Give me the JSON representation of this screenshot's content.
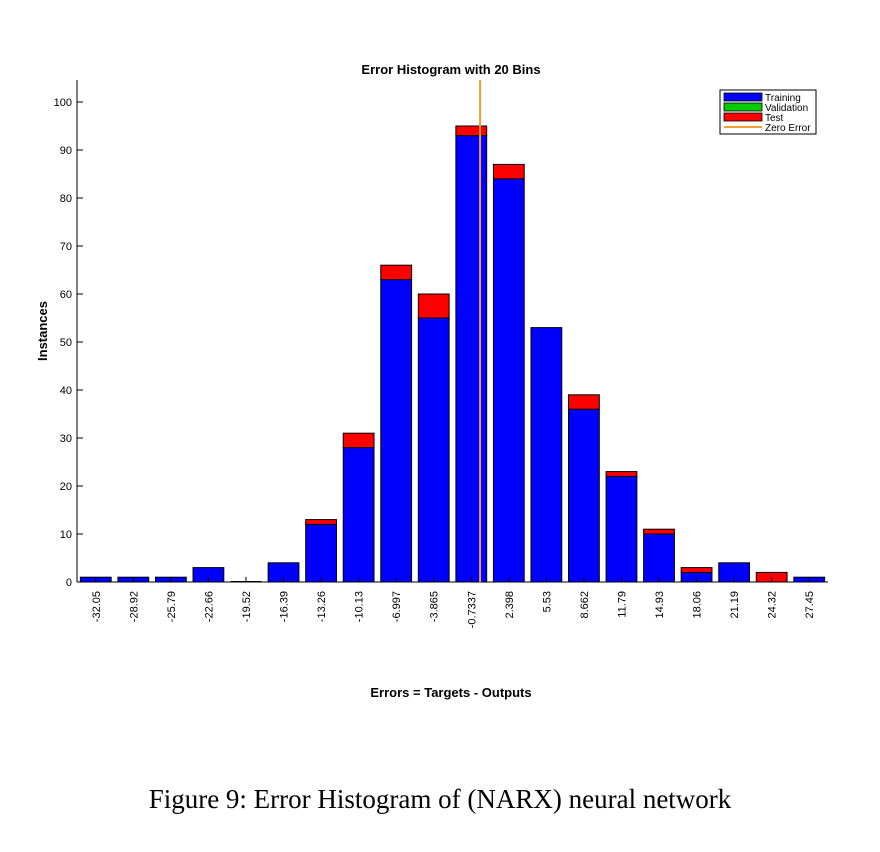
{
  "caption": "Figure 9: Error Histogram of (NARX) neural network",
  "colors": {
    "training": "#0000ff",
    "validation": "#00cc00",
    "test": "#ff0000",
    "zero_error": "#f0a030"
  },
  "chart_data": {
    "type": "bar",
    "stacked": true,
    "title": "Error Histogram with 20 Bins",
    "xlabel": "Errors = Targets - Outputs",
    "ylabel": "Instances",
    "ylim": [
      0,
      100
    ],
    "yticks": [
      0,
      10,
      20,
      30,
      40,
      50,
      60,
      70,
      80,
      90,
      100
    ],
    "categories": [
      "-32.05",
      "-28.92",
      "-25.79",
      "-22.66",
      "-19.52",
      "-16.39",
      "-13.26",
      "-10.13",
      "-6.997",
      "-3.865",
      "-0.7337",
      "2.398",
      "5.53",
      "8.662",
      "11.79",
      "14.93",
      "18.06",
      "21.19",
      "24.32",
      "27.45"
    ],
    "series": [
      {
        "name": "Training",
        "color": "#0000ff",
        "values": [
          1,
          1,
          1,
          3,
          0,
          4,
          12,
          28,
          63,
          55,
          93,
          84,
          53,
          36,
          22,
          10,
          2,
          4,
          0,
          1
        ]
      },
      {
        "name": "Validation",
        "color": "#00cc00",
        "values": [
          0,
          0,
          0,
          0,
          0,
          0,
          0,
          0,
          0,
          0,
          0,
          0,
          0,
          0,
          0,
          0,
          0,
          0,
          0,
          0
        ]
      },
      {
        "name": "Test",
        "color": "#ff0000",
        "values": [
          0,
          0,
          0,
          0,
          0,
          0,
          1,
          3,
          3,
          5,
          2,
          3,
          0,
          3,
          1,
          1,
          1,
          0,
          2,
          0
        ]
      }
    ],
    "zero_error_label": "Zero Error",
    "zero_error_value": 0,
    "legend_position": "top-right",
    "grid": false
  }
}
